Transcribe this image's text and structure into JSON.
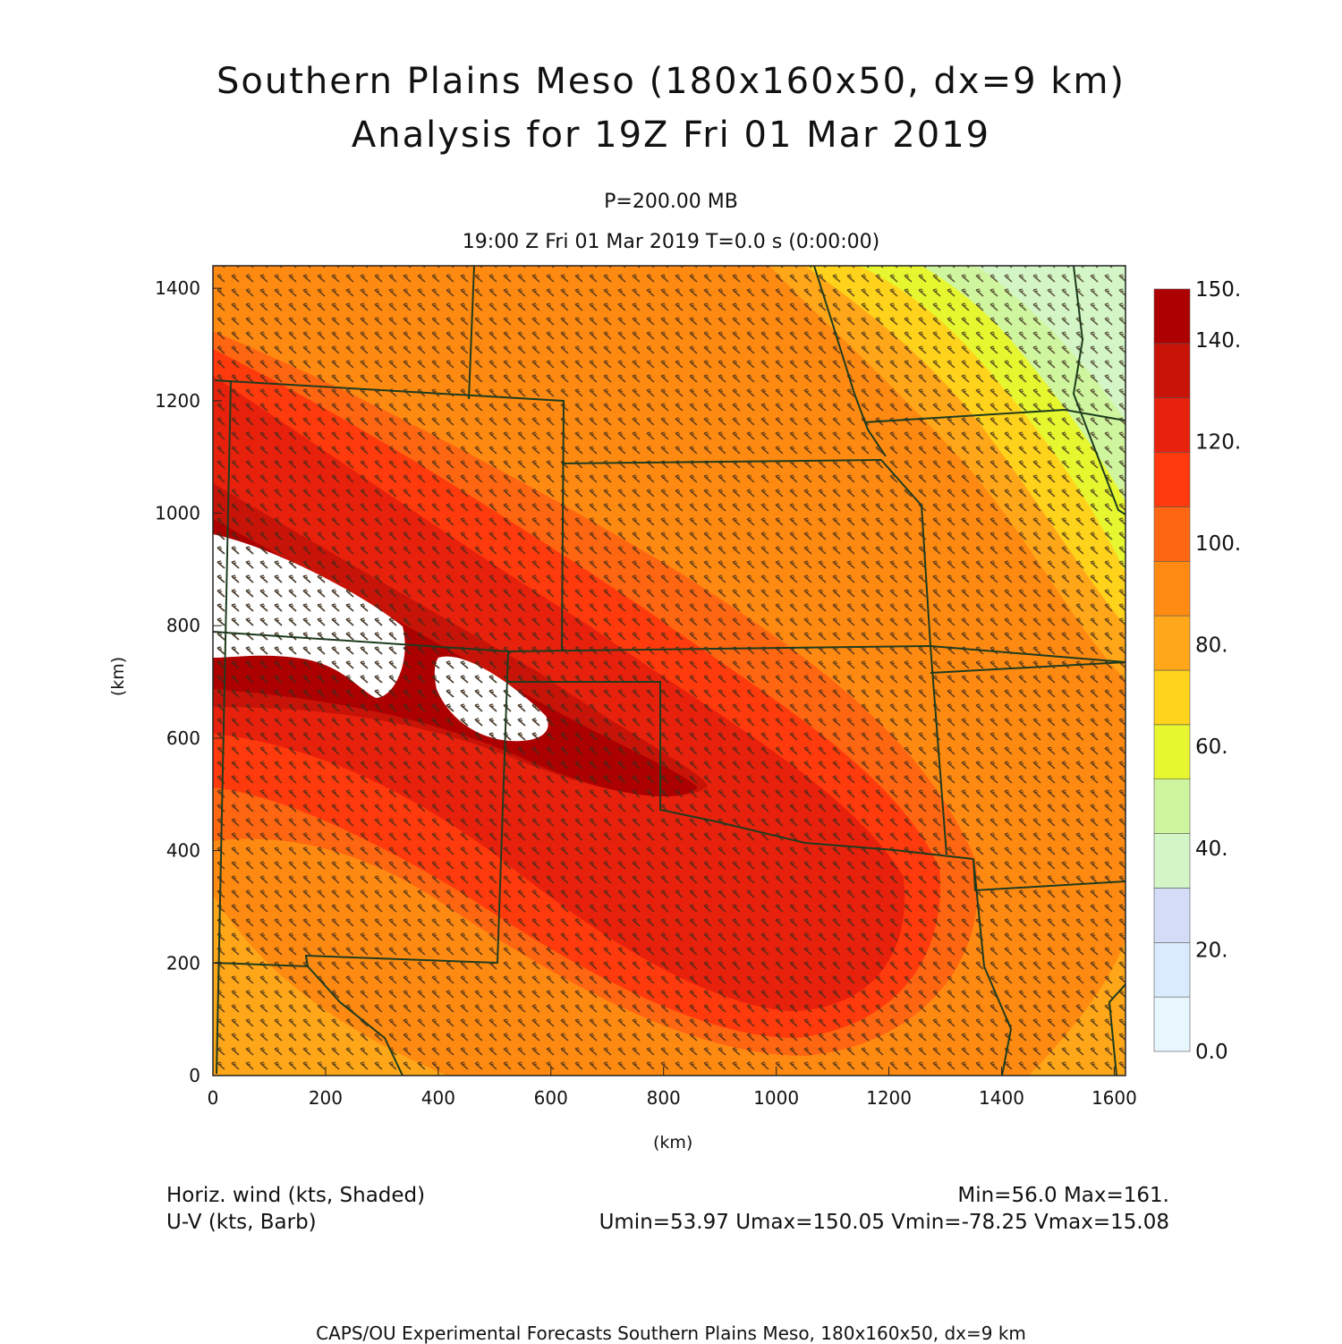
{
  "title": {
    "line1": "Southern Plains Meso (180x160x50, dx=9 km)",
    "line2": "Analysis for 19Z Fri 01 Mar 2019"
  },
  "level_label": "P=200.00 MB",
  "time_label": "19:00 Z Fri 01 Mar 2019    T=0.0 s (0:00:00)",
  "axes": {
    "x_unit": "(km)",
    "y_unit": "(km)",
    "x_ticks": [
      0,
      200,
      400,
      600,
      800,
      1000,
      1200,
      1400,
      1600
    ],
    "y_ticks": [
      0,
      200,
      400,
      600,
      800,
      1000,
      1200,
      1400
    ],
    "x_range": [
      0,
      1620
    ],
    "y_range": [
      0,
      1440
    ]
  },
  "colorbar": {
    "labels": [
      "0.0",
      "20.",
      "40.",
      "60.",
      "80.",
      "100.",
      "120.",
      "140.",
      "150."
    ],
    "colors": [
      "#e8f6fd",
      "#d8ecfd",
      "#d4dcf8",
      "#d4f5c6",
      "#cff59e",
      "#e6f730",
      "#ffd21b",
      "#ffa719",
      "#ff8a12",
      "#ff6611",
      "#ff3a0c",
      "#e8210d",
      "#c81408",
      "#ad0000"
    ]
  },
  "legend": {
    "shaded": "Horiz. wind (kts, Shaded)",
    "barb": "U-V (kts, Barb)"
  },
  "stats": {
    "minmax": "Min=56.0 Max=161.",
    "uv": "Umin=53.97 Umax=150.05 Vmin=-78.25 Vmax=15.08"
  },
  "footer": "CAPS/OU Experimental Forecasts  Southern Plains Meso, 180x160x50, dx=9 km"
}
